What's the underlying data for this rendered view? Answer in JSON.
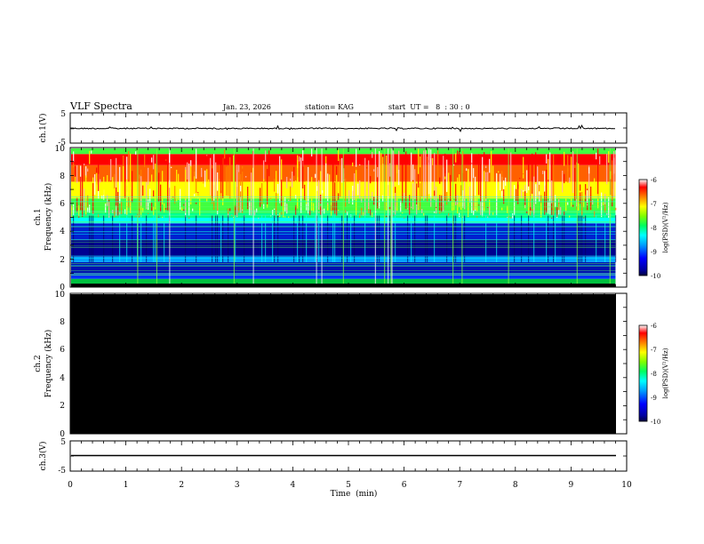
{
  "header": {
    "title": "VLF Spectra",
    "date": "Jan. 23, 2026",
    "station": "station= KAG",
    "start": "start  UT =   8  : 30 : 0"
  },
  "chart_data": [
    {
      "id": "ch1-waveform",
      "type": "line",
      "ylabel": "ch.1(V)",
      "yticks": [
        "5",
        "-5"
      ],
      "ylim": [
        -5,
        5
      ],
      "xlim": [
        0,
        10
      ],
      "baseline": 0,
      "data_end": 9.8
    },
    {
      "id": "ch1-spectrogram",
      "type": "heatmap",
      "ylabel_1": "ch.1",
      "ylabel_2": "Frequency (kHz)",
      "yticks": [
        "0",
        "2",
        "4",
        "6",
        "8",
        "10"
      ],
      "ylim": [
        0,
        10
      ],
      "xlim": [
        0,
        10
      ],
      "data_end": 9.8,
      "colorbar": {
        "label": "log(PSD)(V²/Hz)",
        "ticks": [
          "-6",
          "-7",
          "-8",
          "-9",
          "-10"
        ],
        "range": [
          -10,
          -6
        ]
      }
    },
    {
      "id": "ch2-spectrogram",
      "type": "heatmap",
      "ylabel_1": "ch.2",
      "ylabel_2": "Frequency (kHz)",
      "yticks": [
        "0",
        "2",
        "4",
        "6",
        "8",
        "10"
      ],
      "ylim": [
        0,
        10
      ],
      "xlim": [
        0,
        10
      ],
      "data_end": 9.8,
      "colorbar": {
        "label": "log(PSD)(V²/Hz)",
        "ticks": [
          "-6",
          "-7",
          "-8",
          "-9",
          "-10"
        ],
        "range": [
          -10,
          -6
        ]
      }
    },
    {
      "id": "ch3-waveform",
      "type": "line",
      "ylabel": "ch.3(V)",
      "yticks": [
        "5",
        "-5"
      ],
      "ylim": [
        -5,
        5
      ],
      "xlim": [
        0,
        10
      ],
      "baseline": 0,
      "data_end": 9.8
    }
  ],
  "xaxis": {
    "label": "Time  (min)",
    "ticks": [
      "0",
      "1",
      "2",
      "3",
      "4",
      "5",
      "6",
      "7",
      "8",
      "9",
      "10"
    ]
  }
}
